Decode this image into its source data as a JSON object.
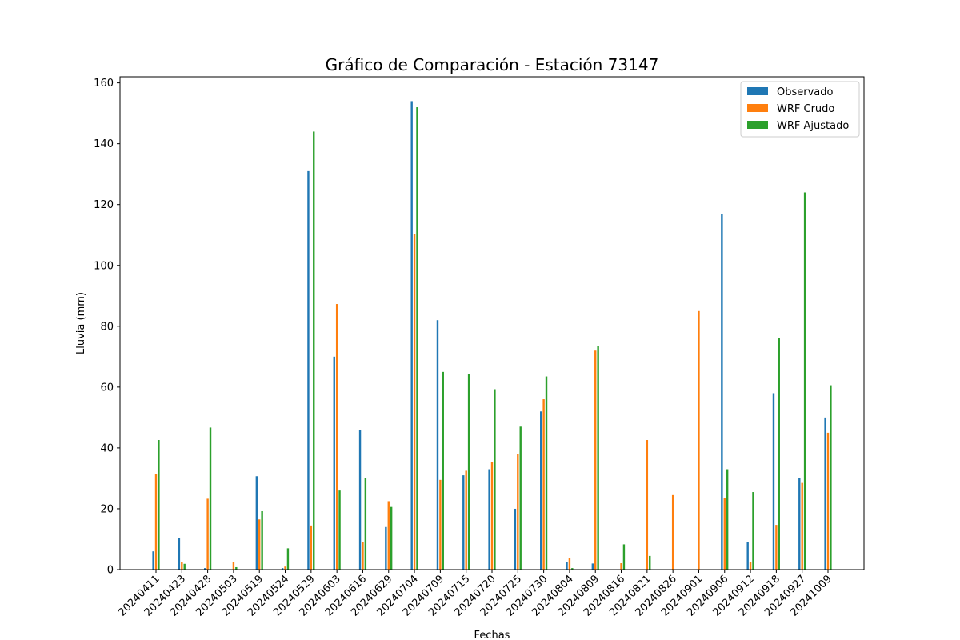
{
  "chart_data": {
    "type": "bar",
    "title": "Gráfico de Comparación - Estación 73147",
    "xlabel": "Fechas",
    "ylabel": "Lluvia (mm)",
    "ylim": [
      0,
      162
    ],
    "yticks": [
      "0",
      "20",
      "40",
      "60",
      "80",
      "100",
      "120",
      "140",
      "160"
    ],
    "ytick_values": [
      0,
      20,
      40,
      60,
      80,
      100,
      120,
      140,
      160
    ],
    "grid": false,
    "legend_position": "top-right",
    "categories": [
      "20240411",
      "20240423",
      "20240428",
      "20240503",
      "20240519",
      "20240524",
      "20240529",
      "20240603",
      "20240616",
      "20240629",
      "20240704",
      "20240709",
      "20240715",
      "20240720",
      "20240725",
      "20240730",
      "20240804",
      "20240809",
      "20240816",
      "20240821",
      "20240826",
      "20240901",
      "20240906",
      "20240912",
      "20240918",
      "20240927",
      "20241009"
    ],
    "series": [
      {
        "name": "Observado",
        "color": "#1f77b4",
        "values": [
          6.0,
          10.3,
          0.5,
          0,
          30.7,
          0.5,
          131.0,
          70.0,
          46.0,
          14.0,
          154.0,
          82.0,
          31.0,
          33.0,
          20.0,
          52.0,
          2.5,
          2.0,
          0,
          0,
          0,
          0,
          117.0,
          9.0,
          58.0,
          30.0,
          50.0
        ]
      },
      {
        "name": "WRF Crudo",
        "color": "#ff7f0e",
        "values": [
          31.5,
          2.5,
          23.3,
          2.5,
          16.5,
          1.0,
          14.5,
          87.3,
          9.0,
          22.5,
          110.3,
          29.5,
          32.5,
          35.3,
          38.0,
          56.0,
          3.9,
          72.0,
          2.1,
          42.6,
          24.5,
          85.0,
          23.4,
          2.5,
          14.7,
          28.5,
          45.0
        ]
      },
      {
        "name": "WRF Ajustado",
        "color": "#2ca02c",
        "values": [
          42.6,
          1.9,
          46.7,
          0.8,
          19.2,
          7.0,
          144.0,
          26.0,
          30.0,
          20.6,
          152.0,
          65.0,
          64.3,
          59.3,
          47.0,
          63.5,
          0.5,
          73.5,
          8.3,
          4.5,
          0,
          0,
          33.0,
          25.5,
          76.0,
          124.0,
          60.6
        ]
      }
    ]
  }
}
